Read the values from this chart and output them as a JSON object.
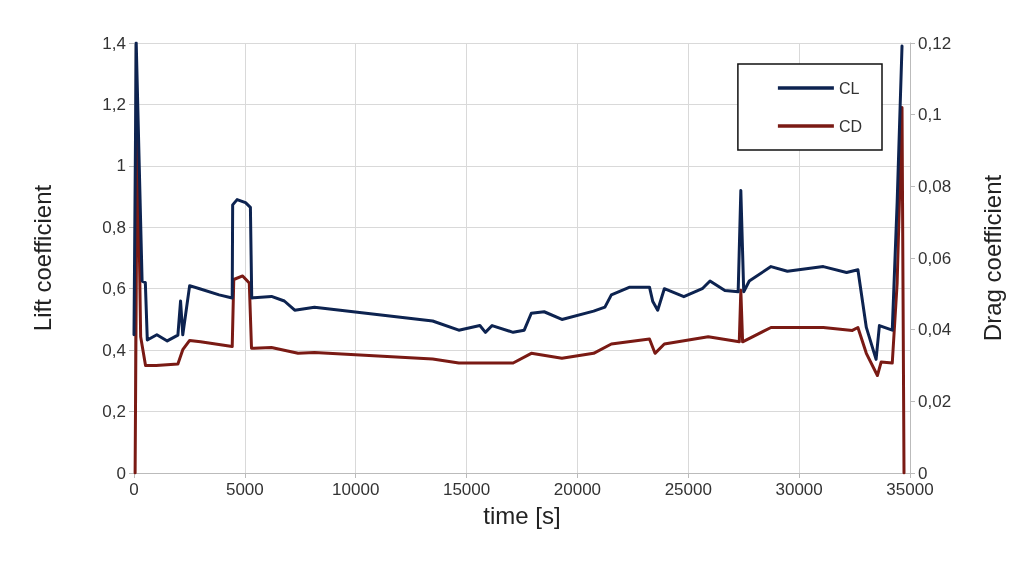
{
  "chart_data": {
    "type": "line",
    "xlabel": "time [s]",
    "ylabel": "Lift coefficient",
    "y2label": "Drag coefficient",
    "xlim": [
      0,
      35000
    ],
    "xticks": [
      0,
      5000,
      10000,
      15000,
      20000,
      25000,
      30000,
      35000
    ],
    "ylim": [
      0,
      1.4
    ],
    "yticks": [
      0,
      {
        "value": 0.2,
        "label": "0,2"
      },
      {
        "value": 0.4,
        "label": "0,4"
      },
      {
        "value": 0.6,
        "label": "0,6"
      },
      {
        "value": 0.8,
        "label": "0,8"
      },
      1,
      {
        "value": 1.2,
        "label": "1,2"
      },
      {
        "value": 1.4,
        "label": "1,4"
      }
    ],
    "y2lim": [
      0,
      0.12
    ],
    "y2ticks": [
      0,
      {
        "value": 0.02,
        "label": "0,02"
      },
      {
        "value": 0.04,
        "label": "0,04"
      },
      {
        "value": 0.06,
        "label": "0,06"
      },
      {
        "value": 0.08,
        "label": "0,08"
      },
      {
        "value": 0.1,
        "label": "0,1"
      },
      {
        "value": 0.12,
        "label": "0,12"
      }
    ],
    "grid": true,
    "legend": "top right",
    "marker": "none",
    "line_style": "solid",
    "series": [
      {
        "name": "CL",
        "color": "#0d2350",
        "x": [
          0,
          100,
          365,
          511,
          600,
          1030,
          1500,
          1980,
          2100,
          2200,
          2510,
          2960,
          3840,
          4430,
          4450,
          4650,
          5030,
          5250,
          5310,
          6200,
          6780,
          7250,
          8140,
          13470,
          14650,
          15600,
          15850,
          16150,
          17100,
          17600,
          17920,
          18500,
          19300,
          20730,
          21240,
          21530,
          22360,
          23250,
          23400,
          23620,
          23920,
          24800,
          25630,
          25980,
          26650,
          27250,
          27370,
          27500,
          27750,
          28730,
          29470,
          31090,
          32140,
          32650,
          33030,
          33470,
          33620,
          34200,
          34420,
          34640
        ],
        "values": [
          0.45,
          1.4,
          0.625,
          0.62,
          0.433,
          0.45,
          0.43,
          0.449,
          0.56,
          0.45,
          0.61,
          0.6,
          0.58,
          0.57,
          0.873,
          0.89,
          0.88,
          0.865,
          0.57,
          0.575,
          0.56,
          0.53,
          0.54,
          0.495,
          0.465,
          0.48,
          0.458,
          0.48,
          0.458,
          0.465,
          0.52,
          0.525,
          0.5,
          0.527,
          0.54,
          0.58,
          0.605,
          0.605,
          0.558,
          0.53,
          0.6,
          0.574,
          0.6,
          0.625,
          0.594,
          0.59,
          0.92,
          0.59,
          0.625,
          0.672,
          0.657,
          0.672,
          0.653,
          0.662,
          0.474,
          0.37,
          0.48,
          0.465,
          0.88,
          1.39
        ]
      },
      {
        "name": "CD",
        "color": "#7a1a14",
        "axis": "y2",
        "x": [
          50,
          150,
          300,
          520,
          1000,
          1980,
          2200,
          2510,
          3000,
          4430,
          4500,
          4900,
          5200,
          5300,
          6200,
          7400,
          8140,
          13470,
          14650,
          17100,
          17920,
          19300,
          20730,
          21530,
          23250,
          23500,
          23920,
          25900,
          27300,
          27370,
          27450,
          28730,
          31090,
          32400,
          32650,
          33030,
          33530,
          33700,
          34200,
          34420,
          34640,
          34730
        ],
        "values": [
          0,
          0.1,
          0.038,
          0.03,
          0.03,
          0.0304,
          0.0344,
          0.037,
          0.0366,
          0.0353,
          0.054,
          0.055,
          0.053,
          0.0348,
          0.035,
          0.0334,
          0.0336,
          0.0318,
          0.0307,
          0.0307,
          0.0334,
          0.032,
          0.0334,
          0.036,
          0.0374,
          0.0334,
          0.036,
          0.038,
          0.0366,
          0.051,
          0.0366,
          0.0406,
          0.0406,
          0.0398,
          0.0406,
          0.0334,
          0.0272,
          0.031,
          0.0307,
          0.053,
          0.102,
          0
        ]
      }
    ]
  }
}
